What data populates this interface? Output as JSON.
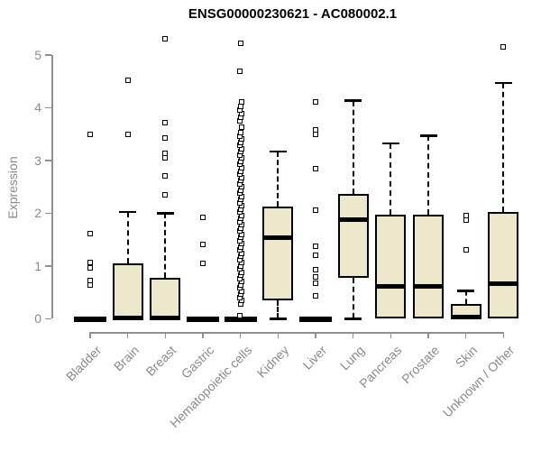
{
  "chart_data": {
    "type": "boxplot",
    "title": "ENSG00000230621 - AC080002.1",
    "ylabel": "Expression",
    "xlabel": "",
    "ylim": [
      0,
      5
    ],
    "yticks": [
      0,
      1,
      2,
      3,
      4,
      5
    ],
    "grid": false,
    "legend": "none",
    "colors": {
      "box_fill": "#ede7cb",
      "box_border": "#000000",
      "median": "#000000",
      "axis": "#8f8f8f",
      "axis_text": "#8a8a8a",
      "title_text": "#000000",
      "background": "#ffffff"
    },
    "categories": [
      "Bladder",
      "Brain",
      "Breast",
      "Gastric",
      "Hematopoietic cells",
      "Kidney",
      "Liver",
      "Lung",
      "Pancreas",
      "Prostate",
      "Skin",
      "Unknown / Other"
    ],
    "series": [
      {
        "name": "Bladder",
        "q1": 0,
        "median": 0,
        "q3": 0,
        "whisker_low": 0,
        "whisker_high": 0,
        "outliers": [
          0.63,
          0.72,
          0.97,
          1.06,
          1.61,
          3.5
        ]
      },
      {
        "name": "Brain",
        "q1": 0,
        "median": 0.02,
        "q3": 1.05,
        "whisker_low": 0,
        "whisker_high": 2.02,
        "outliers": [
          3.49,
          4.52
        ]
      },
      {
        "name": "Breast",
        "q1": 0,
        "median": 0.02,
        "q3": 0.78,
        "whisker_low": 0,
        "whisker_high": 2.0,
        "outliers": [
          2.35,
          2.71,
          3.05,
          3.13,
          3.42,
          3.72,
          5.3
        ]
      },
      {
        "name": "Gastric",
        "q1": 0,
        "median": 0,
        "q3": 0,
        "whisker_low": 0,
        "whisker_high": 0,
        "outliers": [
          1.04,
          1.41,
          1.92
        ]
      },
      {
        "name": "Hematopoietic cells",
        "q1": 0,
        "median": 0,
        "q3": 0,
        "whisker_low": 0,
        "whisker_high": 0,
        "outliers": [
          0.06,
          0.28,
          0.34,
          0.4,
          0.46,
          0.52,
          0.58,
          0.64,
          0.7,
          0.76,
          0.82,
          0.88,
          0.94,
          1.0,
          1.06,
          1.12,
          1.18,
          1.24,
          1.3,
          1.36,
          1.42,
          1.48,
          1.54,
          1.6,
          1.66,
          1.72,
          1.78,
          1.84,
          1.9,
          1.96,
          2.02,
          2.08,
          2.14,
          2.2,
          2.26,
          2.32,
          2.38,
          2.44,
          2.5,
          2.56,
          2.62,
          2.68,
          2.74,
          2.8,
          2.86,
          2.92,
          2.98,
          3.04,
          3.1,
          3.16,
          3.22,
          3.28,
          3.34,
          3.4,
          3.46,
          3.52,
          3.63,
          3.75,
          3.82,
          3.89,
          3.96,
          4.03,
          4.1,
          4.69,
          5.22
        ]
      },
      {
        "name": "Kidney",
        "q1": 0.35,
        "median": 1.53,
        "q3": 2.12,
        "whisker_low": 0,
        "whisker_high": 3.17,
        "outliers": []
      },
      {
        "name": "Liver",
        "q1": 0,
        "median": 0,
        "q3": 0,
        "whisker_low": 0,
        "whisker_high": 0,
        "outliers": [
          0.43,
          0.67,
          0.8,
          0.92,
          1.2,
          1.38,
          2.05,
          2.85,
          3.5,
          3.57,
          4.1
        ]
      },
      {
        "name": "Lung",
        "q1": 0.78,
        "median": 1.87,
        "q3": 2.37,
        "whisker_low": 0,
        "whisker_high": 4.13,
        "outliers": []
      },
      {
        "name": "Pancreas",
        "q1": 0,
        "median": 0.62,
        "q3": 1.97,
        "whisker_low": 0,
        "whisker_high": 3.32,
        "outliers": []
      },
      {
        "name": "Prostate",
        "q1": 0,
        "median": 0.62,
        "q3": 1.97,
        "whisker_low": 0,
        "whisker_high": 3.47,
        "outliers": []
      },
      {
        "name": "Skin",
        "q1": 0,
        "median": 0.03,
        "q3": 0.28,
        "whisker_low": 0,
        "whisker_high": 0.53,
        "outliers": [
          1.3,
          1.87,
          1.95
        ]
      },
      {
        "name": "Unknown / Other",
        "q1": 0,
        "median": 0.67,
        "q3": 2.02,
        "whisker_low": 0,
        "whisker_high": 4.47,
        "outliers": [
          5.15
        ]
      }
    ]
  }
}
